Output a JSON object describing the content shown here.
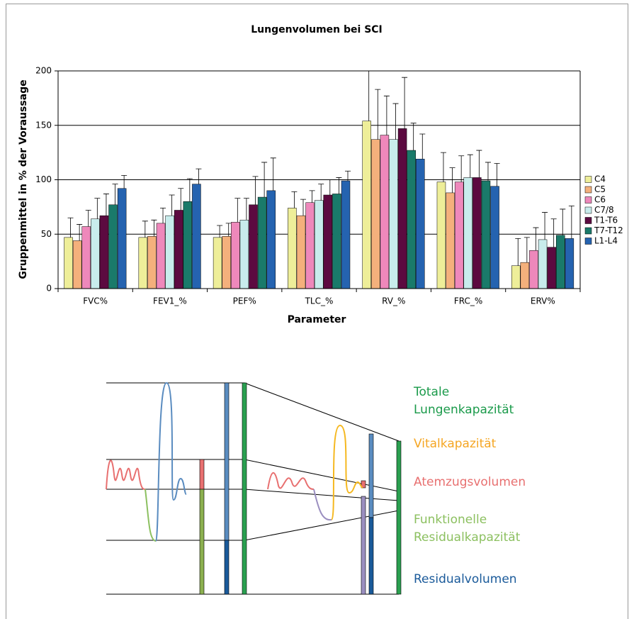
{
  "chart_data": {
    "type": "bar",
    "title": "Lungenvolumen bei SCI",
    "x_label": "Parameter",
    "y_label": "Gruppenmittel in % der Voraussage",
    "categories": [
      "FVC%",
      "FEV1_%",
      "PEF%",
      "TLC_%",
      "RV_%",
      "FRC_%",
      "ERV%"
    ],
    "series": [
      {
        "name": "C4",
        "color": "#eeee99",
        "values": [
          47,
          47,
          47,
          74,
          154,
          98,
          21
        ],
        "errors": [
          18,
          15,
          11,
          15,
          46,
          27,
          25
        ]
      },
      {
        "name": "C5",
        "color": "#f4b07c",
        "values": [
          44,
          48,
          48,
          67,
          137,
          88,
          24
        ],
        "errors": [
          15,
          15,
          12,
          15,
          46,
          23,
          23
        ]
      },
      {
        "name": "C6",
        "color": "#ee88bb",
        "values": [
          57,
          60,
          61,
          79,
          141,
          98,
          35
        ],
        "errors": [
          15,
          14,
          22,
          11,
          36,
          24,
          21
        ]
      },
      {
        "name": "C7/8",
        "color": "#c8ecec",
        "values": [
          64,
          67,
          63,
          81,
          137,
          102,
          45
        ],
        "errors": [
          19,
          19,
          20,
          15,
          33,
          21,
          25
        ]
      },
      {
        "name": "T1-T6",
        "color": "#5c0a40",
        "values": [
          67,
          72,
          77,
          86,
          147,
          102,
          38
        ],
        "errors": [
          20,
          20,
          26,
          14,
          47,
          25,
          26
        ]
      },
      {
        "name": "T7-T12",
        "color": "#1a7a6a",
        "values": [
          77,
          80,
          84,
          87,
          127,
          99,
          49
        ],
        "errors": [
          19,
          21,
          32,
          15,
          25,
          17,
          24
        ]
      },
      {
        "name": "L1-L4",
        "color": "#2563b0",
        "values": [
          92,
          96,
          90,
          99,
          119,
          94,
          46
        ],
        "errors": [
          12,
          14,
          30,
          9,
          23,
          21,
          30
        ]
      }
    ],
    "ylim": [
      0,
      200
    ],
    "yticks": [
      0,
      50,
      100,
      150,
      200
    ],
    "grid": true,
    "legend": "right"
  },
  "diagram": {
    "labels": [
      {
        "lines": [
          "Totale",
          "Lungenkapazität"
        ],
        "color": "#1a9a4a"
      },
      {
        "lines": [
          "Vitalkapazität"
        ],
        "color": "#f5a623"
      },
      {
        "lines": [
          "Atemzugsvolumen"
        ],
        "color": "#e87070"
      },
      {
        "lines": [
          "Funktionelle",
          "Residualkapazität"
        ],
        "color": "#8cc060"
      },
      {
        "lines": [
          "Residualvolumen"
        ],
        "color": "#1a5a9a"
      }
    ]
  }
}
